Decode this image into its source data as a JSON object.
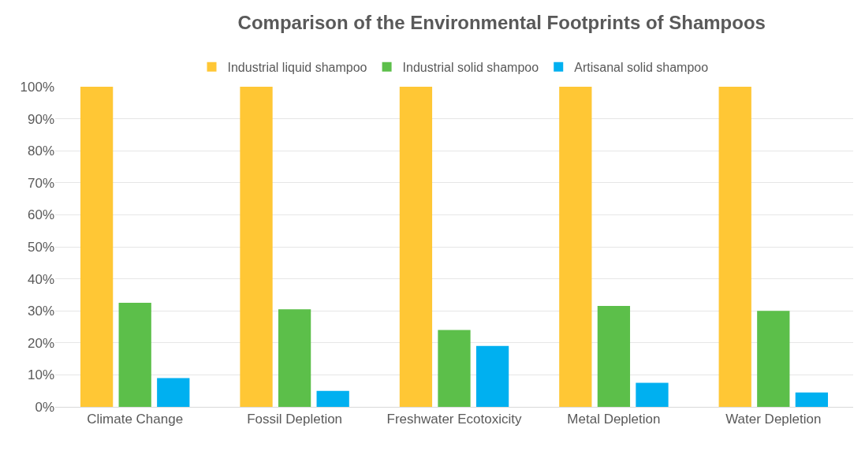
{
  "chart_data": {
    "type": "bar",
    "title": "Comparison of the Environmental Footprints of Shampoos",
    "categories": [
      "Climate Change",
      "Fossil Depletion",
      "Freshwater Ecotoxicity",
      "Metal Depletion",
      "Water Depletion"
    ],
    "series": [
      {
        "name": "Industrial liquid shampoo",
        "color": "#ffc735",
        "values": [
          100,
          100,
          100,
          100,
          100
        ]
      },
      {
        "name": "Industrial solid shampoo",
        "color": "#5cbf4a",
        "values": [
          32.5,
          30.5,
          24,
          31.5,
          30
        ]
      },
      {
        "name": "Artisanal solid shampoo",
        "color": "#00b0f0",
        "values": [
          9,
          5,
          19,
          7.5,
          4.5
        ]
      }
    ],
    "ylim": [
      0,
      100
    ],
    "yticks": [
      {
        "value": 0,
        "label": "0%"
      },
      {
        "value": 10,
        "label": "10%"
      },
      {
        "value": 20,
        "label": "20%"
      },
      {
        "value": 30,
        "label": "30%"
      },
      {
        "value": 40,
        "label": "40%"
      },
      {
        "value": 50,
        "label": "50%"
      },
      {
        "value": 60,
        "label": "60%"
      },
      {
        "value": 70,
        "label": "70%"
      },
      {
        "value": 80,
        "label": "80%"
      },
      {
        "value": 90,
        "label": "90%"
      },
      {
        "value": 100,
        "label": "100%"
      }
    ],
    "grid": "y",
    "legend": "top"
  }
}
